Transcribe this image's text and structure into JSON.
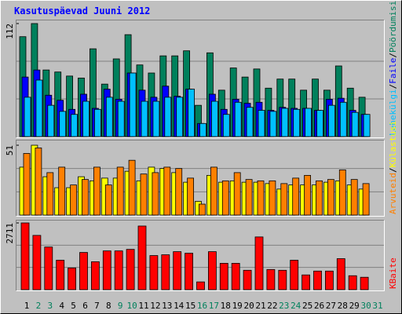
{
  "title": "Kasutuspäevad Juuni 2012",
  "separator": "/",
  "chart_data": [
    {
      "type": "bar",
      "ylim": [
        0,
        112
      ],
      "yticks": [
        112
      ],
      "series": [
        {
          "name": "Pöördumisi",
          "color": "#00805c",
          "values": [
            99,
            112,
            66,
            64,
            60,
            58,
            87,
            52,
            77,
            101,
            71,
            63,
            80,
            80,
            85,
            31,
            83,
            46,
            68,
            59,
            67,
            48,
            57,
            57,
            46,
            57,
            46,
            70,
            48,
            39,
            null
          ]
        },
        {
          "name": "Faile",
          "color": "#0000ff",
          "values": [
            59,
            66,
            41,
            36,
            27,
            42,
            28,
            47,
            37,
            63,
            46,
            39,
            50,
            40,
            47,
            13,
            42,
            27,
            37,
            33,
            34,
            26,
            29,
            28,
            28,
            26,
            37,
            38,
            26,
            22,
            null
          ]
        },
        {
          "name": "Lehekülgi",
          "color": "#00c0ff",
          "values": [
            39,
            56,
            31,
            25,
            22,
            35,
            27,
            39,
            35,
            63,
            35,
            35,
            39,
            39,
            47,
            13,
            35,
            22,
            34,
            29,
            26,
            25,
            28,
            27,
            28,
            26,
            31,
            34,
            24,
            22,
            null
          ]
        }
      ]
    },
    {
      "type": "bar",
      "ylim": [
        0,
        51
      ],
      "yticks": [
        51
      ],
      "series": [
        {
          "name": "Külastusi",
          "color": "#ffff00",
          "values": [
            35,
            51,
            28,
            20,
            20,
            28,
            25,
            27,
            27,
            32,
            25,
            35,
            34,
            31,
            24,
            10,
            29,
            24,
            25,
            24,
            24,
            23,
            19,
            22,
            22,
            22,
            24,
            25,
            22,
            19,
            null
          ]
        },
        {
          "name": "Arvuteid",
          "color": "#ff8000",
          "values": [
            45,
            49,
            31,
            35,
            22,
            26,
            35,
            22,
            35,
            40,
            30,
            31,
            35,
            34,
            27,
            8,
            35,
            25,
            31,
            26,
            25,
            25,
            23,
            27,
            29,
            25,
            26,
            33,
            26,
            23,
            null
          ]
        }
      ]
    },
    {
      "type": "bar",
      "ylim": [
        0,
        2711
      ],
      "yticks": [
        2711
      ],
      "categories": [
        1,
        2,
        3,
        4,
        5,
        6,
        7,
        8,
        9,
        10,
        11,
        12,
        13,
        14,
        15,
        16,
        17,
        18,
        19,
        20,
        21,
        22,
        23,
        24,
        25,
        26,
        27,
        28,
        29,
        30,
        31
      ],
      "category_colors": [
        "#000000",
        "#00805c",
        "#00805c",
        "#000000",
        "#000000",
        "#000000",
        "#000000",
        "#000000",
        "#00805c",
        "#00805c",
        "#000000",
        "#000000",
        "#000000",
        "#000000",
        "#000000",
        "#00805c",
        "#00805c",
        "#000000",
        "#000000",
        "#000000",
        "#000000",
        "#000000",
        "#00805c",
        "#00805c",
        "#000000",
        "#000000",
        "#000000",
        "#000000",
        "#000000",
        "#00805c",
        "#00805c"
      ],
      "series": [
        {
          "name": "KBaite",
          "color": "#ff0000",
          "values": [
            2711,
            2205,
            1733,
            1197,
            882,
            1512,
            1134,
            1575,
            1575,
            1638,
            2585,
            1386,
            1418,
            1544,
            1481,
            315,
            1544,
            1071,
            1071,
            788,
            2142,
            819,
            788,
            1197,
            599,
            756,
            756,
            1260,
            567,
            504,
            null
          ]
        }
      ]
    }
  ]
}
